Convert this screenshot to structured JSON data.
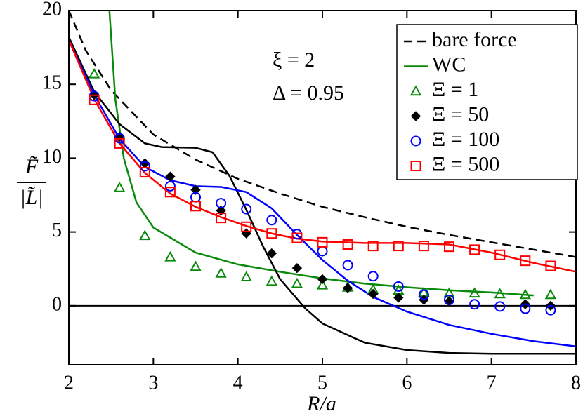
{
  "chart_data": {
    "type": "line",
    "x_label": "R/a",
    "y_label_numerator": "F̃",
    "y_label_denominator": "|L̃|",
    "annotations": [
      "ξ = 2",
      "Δ = 0.95"
    ],
    "xlim": [
      2,
      8
    ],
    "xticks": [
      2,
      3,
      4,
      5,
      6,
      7,
      8
    ],
    "ylim": [
      -4,
      20
    ],
    "yticks": [
      0,
      5,
      10,
      15,
      20
    ],
    "zero_line": true,
    "legend": "upper right",
    "series": [
      {
        "name": "bare force",
        "color": "#000000",
        "style": "dashed",
        "x": [
          2.0,
          2.2,
          2.5,
          3.0,
          3.5,
          4.0,
          4.5,
          5.0,
          5.5,
          6.0,
          6.5,
          7.0,
          7.5,
          8.0
        ],
        "values": [
          20,
          17.3,
          14.6,
          11.6,
          9.9,
          8.6,
          7.6,
          6.7,
          6.0,
          5.35,
          4.8,
          4.3,
          3.8,
          3.3
        ]
      },
      {
        "name": "WC",
        "color": "#0a8a0a",
        "style": "solid",
        "x": [
          2.48,
          2.55,
          2.65,
          2.8,
          3.0,
          3.5,
          4.0,
          4.5,
          5.0,
          5.5,
          6.0,
          6.5,
          7.0,
          7.5
        ],
        "values": [
          20,
          14,
          10,
          7,
          5.3,
          3.6,
          2.8,
          2.3,
          1.85,
          1.5,
          1.25,
          1.05,
          0.9,
          0.7
        ]
      },
      {
        "color": "#000000",
        "style": "solid",
        "x": [
          2.0,
          2.3,
          2.6,
          2.9,
          3.1,
          3.5,
          3.7,
          3.9,
          4.1,
          4.3,
          4.5,
          4.8,
          5.0,
          5.5,
          6.0,
          6.5,
          7.0,
          8.0
        ],
        "values": [
          18.2,
          14.5,
          12.3,
          11.0,
          10.75,
          10.7,
          10.4,
          8.8,
          6.5,
          4.0,
          1.8,
          -0.2,
          -1.2,
          -2.5,
          -3.0,
          -3.2,
          -3.25,
          -3.25
        ]
      },
      {
        "color": "#0000ff",
        "style": "solid",
        "x": [
          2.0,
          2.3,
          2.6,
          2.9,
          3.2,
          3.5,
          3.8,
          4.1,
          4.4,
          4.7,
          5.0,
          5.3,
          5.6,
          6.0,
          6.5,
          7.0,
          7.5,
          8.0
        ],
        "values": [
          18,
          14.3,
          11.3,
          9.4,
          8.5,
          8.1,
          8.05,
          7.7,
          6.6,
          4.8,
          3.1,
          1.7,
          0.6,
          -0.4,
          -1.3,
          -1.9,
          -2.4,
          -2.75
        ]
      },
      {
        "color": "#ff0000",
        "style": "solid",
        "x": [
          2.0,
          2.3,
          2.6,
          2.9,
          3.2,
          3.5,
          3.8,
          4.1,
          4.4,
          4.7,
          5.0,
          5.5,
          6.0,
          6.5,
          7.0,
          7.5,
          8.0
        ],
        "values": [
          18,
          14,
          11.0,
          9.0,
          7.6,
          6.7,
          6.0,
          5.4,
          4.9,
          4.55,
          4.35,
          4.25,
          4.25,
          4.15,
          3.6,
          2.9,
          2.3
        ]
      },
      {
        "name": "Ξ = 1",
        "color": "#0a8a0a",
        "marker": "triangle",
        "x": [
          2.3,
          2.6,
          2.9,
          3.2,
          3.5,
          3.8,
          4.1,
          4.4,
          4.7,
          5.0,
          5.3,
          5.6,
          5.9,
          6.2,
          6.5,
          6.8,
          7.1,
          7.4,
          7.7
        ],
        "values": [
          15.7,
          8.0,
          4.75,
          3.3,
          2.65,
          2.2,
          1.95,
          1.65,
          1.5,
          1.4,
          1.25,
          1.1,
          1.05,
          0.9,
          0.85,
          0.85,
          0.8,
          0.75,
          0.75
        ]
      },
      {
        "name": "Ξ = 50",
        "color": "#000000",
        "marker": "diamond",
        "x": [
          2.3,
          2.6,
          2.9,
          3.2,
          3.5,
          3.8,
          4.1,
          4.4,
          4.7,
          5.0,
          5.3,
          5.6,
          5.9,
          6.2,
          6.5,
          7.4,
          7.7
        ],
        "values": [
          14.3,
          11.45,
          9.65,
          8.75,
          7.85,
          6.45,
          4.9,
          3.55,
          2.55,
          1.8,
          1.2,
          0.8,
          0.55,
          0.4,
          0.3,
          0.1,
          0.0
        ]
      },
      {
        "name": "Ξ = 100",
        "color": "#0000ff",
        "marker": "circle",
        "x": [
          2.3,
          2.6,
          2.9,
          3.2,
          3.5,
          3.8,
          4.1,
          4.4,
          4.7,
          5.0,
          5.3,
          5.6,
          5.9,
          6.2,
          6.5,
          6.8,
          7.1,
          7.4,
          7.7
        ],
        "values": [
          14.2,
          11.35,
          9.45,
          8.1,
          7.35,
          6.95,
          6.55,
          5.8,
          4.85,
          3.7,
          2.75,
          2.0,
          1.3,
          0.75,
          0.4,
          0.1,
          -0.05,
          -0.2,
          -0.3
        ]
      },
      {
        "name": "Ξ = 500",
        "color": "#ff0000",
        "marker": "square",
        "x": [
          2.3,
          2.6,
          2.9,
          3.2,
          3.5,
          3.8,
          4.1,
          4.4,
          4.7,
          5.0,
          5.3,
          5.6,
          5.9,
          6.2,
          6.5,
          6.8,
          7.1,
          7.4,
          7.7
        ],
        "values": [
          13.95,
          11.0,
          9.05,
          7.7,
          6.75,
          5.95,
          5.35,
          4.9,
          4.6,
          4.3,
          4.15,
          4.05,
          4.05,
          4.05,
          4.0,
          3.8,
          3.45,
          3.05,
          2.7
        ]
      }
    ]
  }
}
